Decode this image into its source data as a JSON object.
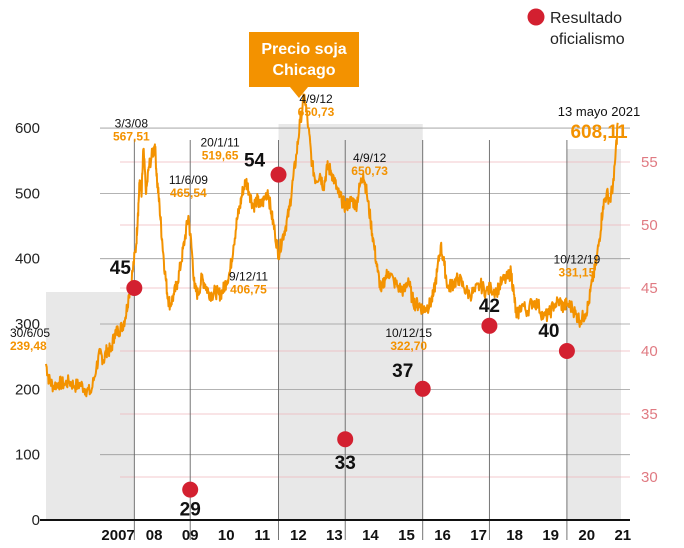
{
  "chart_data": {
    "type": "line",
    "title": "Precio soja Chicago",
    "legend": {
      "label": "Resultado oficialismo",
      "color": "#d32030",
      "placement": "top-right"
    },
    "colors": {
      "line": "#f39200",
      "shading": "#e8e8e8",
      "dot": "#d32030",
      "right_axis": "#e07a82",
      "title_box": "#f39200"
    },
    "left_axis": {
      "ylim": [
        0,
        620
      ],
      "ticks": [
        "0",
        "100",
        "200",
        "300",
        "400",
        "500",
        "600"
      ]
    },
    "right_axis": {
      "ylim": [
        25,
        60
      ],
      "ticks": [
        "30",
        "35",
        "40",
        "45",
        "50",
        "55"
      ]
    },
    "x_axis": {
      "xlim": [
        2005.5,
        2021.7
      ],
      "ticks": [
        {
          "label": "2007",
          "pos": 2007.5
        },
        {
          "label": "08",
          "pos": 2008.5
        },
        {
          "label": "09",
          "pos": 2009.5
        },
        {
          "label": "10",
          "pos": 2010.5
        },
        {
          "label": "11",
          "pos": 2011.5
        },
        {
          "label": "12",
          "pos": 2012.5
        },
        {
          "label": "13",
          "pos": 2013.5
        },
        {
          "label": "14",
          "pos": 2014.5
        },
        {
          "label": "15",
          "pos": 2015.5
        },
        {
          "label": "16",
          "pos": 2016.5
        },
        {
          "label": "17",
          "pos": 2017.5
        },
        {
          "label": "18",
          "pos": 2018.5
        },
        {
          "label": "19",
          "pos": 2019.5
        },
        {
          "label": "20",
          "pos": 2020.5
        },
        {
          "label": "21",
          "pos": 2021.5
        }
      ]
    },
    "shaded_periods": [
      [
        2005.5,
        2007.95
      ],
      [
        2011.95,
        2015.95
      ],
      [
        2019.95,
        2021.45
      ]
    ],
    "election_lines": [
      2007.95,
      2009.5,
      2011.95,
      2013.8,
      2015.95,
      2017.8,
      2019.95
    ],
    "series": [
      {
        "name": "Precio soja Chicago",
        "points": [
          [
            2005.5,
            239
          ],
          [
            2005.58,
            215
          ],
          [
            2005.7,
            205
          ],
          [
            2005.85,
            210
          ],
          [
            2006.0,
            208
          ],
          [
            2006.15,
            212
          ],
          [
            2006.3,
            205
          ],
          [
            2006.45,
            208
          ],
          [
            2006.6,
            200
          ],
          [
            2006.75,
            195
          ],
          [
            2006.9,
            235
          ],
          [
            2007.0,
            255
          ],
          [
            2007.1,
            245
          ],
          [
            2007.2,
            262
          ],
          [
            2007.3,
            258
          ],
          [
            2007.4,
            285
          ],
          [
            2007.5,
            290
          ],
          [
            2007.6,
            295
          ],
          [
            2007.7,
            310
          ],
          [
            2007.8,
            345
          ],
          [
            2007.9,
            380
          ],
          [
            2008.0,
            420
          ],
          [
            2008.05,
            470
          ],
          [
            2008.1,
            520
          ],
          [
            2008.15,
            495
          ],
          [
            2008.2,
            567.51
          ],
          [
            2008.28,
            500
          ],
          [
            2008.35,
            540
          ],
          [
            2008.45,
            560
          ],
          [
            2008.52,
            575
          ],
          [
            2008.58,
            520
          ],
          [
            2008.65,
            480
          ],
          [
            2008.72,
            430
          ],
          [
            2008.8,
            380
          ],
          [
            2008.88,
            340
          ],
          [
            2008.95,
            330
          ],
          [
            2009.05,
            345
          ],
          [
            2009.15,
            365
          ],
          [
            2009.25,
            395
          ],
          [
            2009.35,
            430
          ],
          [
            2009.45,
            465.54
          ],
          [
            2009.55,
            410
          ],
          [
            2009.62,
            355
          ],
          [
            2009.72,
            345
          ],
          [
            2009.82,
            370
          ],
          [
            2009.92,
            360
          ],
          [
            2010.0,
            350
          ],
          [
            2010.1,
            345
          ],
          [
            2010.2,
            350
          ],
          [
            2010.3,
            345
          ],
          [
            2010.4,
            350
          ],
          [
            2010.5,
            365
          ],
          [
            2010.6,
            380
          ],
          [
            2010.7,
            420
          ],
          [
            2010.8,
            460
          ],
          [
            2010.88,
            480
          ],
          [
            2010.96,
            505
          ],
          [
            2011.05,
            519.65
          ],
          [
            2011.15,
            500
          ],
          [
            2011.25,
            480
          ],
          [
            2011.35,
            490
          ],
          [
            2011.45,
            480
          ],
          [
            2011.55,
            490
          ],
          [
            2011.65,
            505
          ],
          [
            2011.75,
            470
          ],
          [
            2011.85,
            440
          ],
          [
            2011.95,
            406.75
          ],
          [
            2012.05,
            430
          ],
          [
            2012.15,
            450
          ],
          [
            2012.25,
            475
          ],
          [
            2012.35,
            520
          ],
          [
            2012.45,
            560
          ],
          [
            2012.55,
            610
          ],
          [
            2012.67,
            650.73
          ],
          [
            2012.78,
            600
          ],
          [
            2012.88,
            545
          ],
          [
            2012.98,
            520
          ],
          [
            2013.1,
            530
          ],
          [
            2013.2,
            510
          ],
          [
            2013.3,
            540
          ],
          [
            2013.4,
            535
          ],
          [
            2013.5,
            520
          ],
          [
            2013.6,
            500
          ],
          [
            2013.7,
            490
          ],
          [
            2013.8,
            480
          ],
          [
            2013.9,
            485
          ],
          [
            2014.0,
            490
          ],
          [
            2014.1,
            480
          ],
          [
            2014.2,
            510
          ],
          [
            2014.3,
            530
          ],
          [
            2014.4,
            500
          ],
          [
            2014.5,
            460
          ],
          [
            2014.6,
            420
          ],
          [
            2014.7,
            380
          ],
          [
            2014.8,
            350
          ],
          [
            2014.9,
            370
          ],
          [
            2015.0,
            380
          ],
          [
            2015.15,
            365
          ],
          [
            2015.3,
            355
          ],
          [
            2015.45,
            350
          ],
          [
            2015.55,
            370
          ],
          [
            2015.65,
            340
          ],
          [
            2015.75,
            330
          ],
          [
            2015.85,
            330
          ],
          [
            2015.95,
            322.7
          ],
          [
            2016.05,
            325
          ],
          [
            2016.15,
            330
          ],
          [
            2016.25,
            345
          ],
          [
            2016.35,
            380
          ],
          [
            2016.45,
            420
          ],
          [
            2016.55,
            390
          ],
          [
            2016.65,
            355
          ],
          [
            2016.75,
            360
          ],
          [
            2016.85,
            365
          ],
          [
            2016.95,
            370
          ],
          [
            2017.1,
            355
          ],
          [
            2017.25,
            345
          ],
          [
            2017.4,
            350
          ],
          [
            2017.55,
            360
          ],
          [
            2017.7,
            350
          ],
          [
            2017.85,
            355
          ],
          [
            2018.0,
            350
          ],
          [
            2018.15,
            365
          ],
          [
            2018.3,
            370
          ],
          [
            2018.4,
            380
          ],
          [
            2018.48,
            345
          ],
          [
            2018.55,
            310
          ],
          [
            2018.7,
            330
          ],
          [
            2018.85,
            320
          ],
          [
            2019.0,
            335
          ],
          [
            2019.15,
            330
          ],
          [
            2019.3,
            310
          ],
          [
            2019.45,
            315
          ],
          [
            2019.6,
            330
          ],
          [
            2019.75,
            335
          ],
          [
            2019.85,
            325
          ],
          [
            2019.95,
            331.15
          ],
          [
            2020.1,
            325
          ],
          [
            2020.2,
            315
          ],
          [
            2020.32,
            305
          ],
          [
            2020.45,
            315
          ],
          [
            2020.55,
            330
          ],
          [
            2020.65,
            365
          ],
          [
            2020.75,
            390
          ],
          [
            2020.85,
            430
          ],
          [
            2020.95,
            480
          ],
          [
            2021.05,
            500
          ],
          [
            2021.15,
            490
          ],
          [
            2021.25,
            520
          ],
          [
            2021.36,
            608.11
          ]
        ]
      }
    ],
    "election_results": [
      {
        "year": 2007.95,
        "result": 45,
        "label": "45"
      },
      {
        "year": 2009.5,
        "result": 29,
        "label": "29"
      },
      {
        "year": 2011.95,
        "result": 54,
        "label": "54"
      },
      {
        "year": 2013.8,
        "result": 33,
        "label": "33"
      },
      {
        "year": 2015.95,
        "result": 37,
        "label": "37"
      },
      {
        "year": 2017.8,
        "result": 42,
        "label": "42"
      },
      {
        "year": 2019.95,
        "result": 40,
        "label": "40"
      }
    ],
    "annotations": [
      {
        "date": "30/6/05",
        "value": "239,48",
        "x": 2005.5,
        "y": 239.48
      },
      {
        "date": "3/3/08",
        "value": "567,51",
        "x": 2008.2,
        "y": 567.51
      },
      {
        "date": "11/6/09",
        "value": "465,54",
        "x": 2009.45,
        "y": 465.54
      },
      {
        "date": "20/1/11",
        "value": "519,65",
        "x": 2011.05,
        "y": 519.65
      },
      {
        "date": "9/12/11",
        "value": "406,75",
        "x": 2011.95,
        "y": 406.75
      },
      {
        "date": "4/9/12",
        "value": "650,73",
        "x": 2012.67,
        "y": 650.73
      },
      {
        "date": "4/9/12",
        "value": "650,73",
        "x": 2014.2,
        "y": 510
      },
      {
        "date": "10/12/15",
        "value": "322,70",
        "x": 2015.95,
        "y": 322.7
      },
      {
        "date": "10/12/19",
        "value": "331,15",
        "x": 2019.95,
        "y": 331.15
      },
      {
        "date": "13 mayo 2021",
        "value": "608,11",
        "x": 2021.36,
        "y": 608.11
      }
    ]
  }
}
